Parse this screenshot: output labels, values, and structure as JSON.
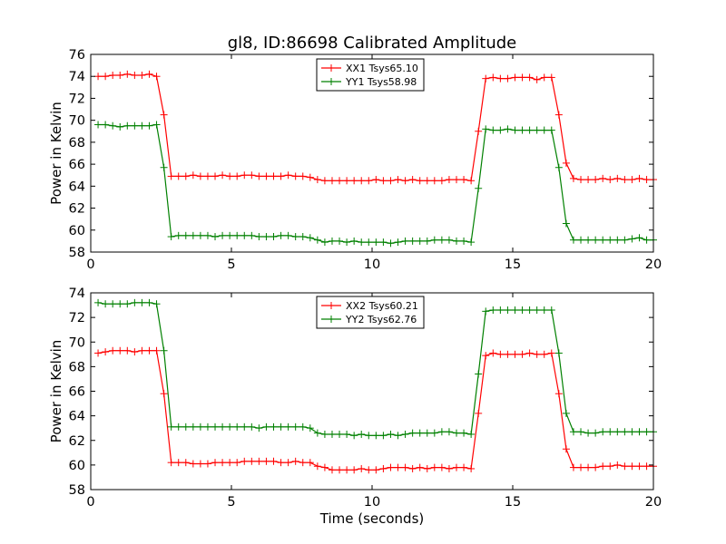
{
  "figure": {
    "title": "gl8, ID:86698 Calibrated Amplitude"
  },
  "chart_data": [
    {
      "type": "line",
      "title": "gl8, ID:86698 Calibrated Amplitude",
      "xlabel": "",
      "ylabel": "Power in Kelvin",
      "xlim": [
        0,
        20
      ],
      "ylim": [
        58,
        76
      ],
      "xticks": [
        "0",
        "5",
        "10",
        "15",
        "20"
      ],
      "yticks": [
        "58",
        "60",
        "62",
        "64",
        "66",
        "68",
        "70",
        "72",
        "74",
        "76"
      ],
      "grid": false,
      "legend_position": "top-center",
      "x": [
        0.26,
        0.52,
        0.78,
        1.04,
        1.3,
        1.56,
        1.82,
        2.08,
        2.34,
        2.6,
        2.86,
        3.12,
        3.38,
        3.64,
        3.9,
        4.16,
        4.42,
        4.68,
        4.94,
        5.2,
        5.46,
        5.72,
        5.98,
        6.24,
        6.5,
        6.76,
        7.02,
        7.28,
        7.54,
        7.8,
        8.06,
        8.32,
        8.58,
        8.84,
        9.1,
        9.36,
        9.62,
        9.88,
        10.14,
        10.4,
        10.66,
        10.92,
        11.18,
        11.44,
        11.7,
        11.96,
        12.22,
        12.48,
        12.74,
        13.0,
        13.26,
        13.52,
        13.78,
        14.04,
        14.3,
        14.56,
        14.82,
        15.08,
        15.34,
        15.6,
        15.86,
        16.12,
        16.38,
        16.64,
        16.9,
        17.16,
        17.42,
        17.68,
        17.94,
        18.2,
        18.46,
        18.72,
        18.98,
        19.24,
        19.5,
        19.76,
        20.0
      ],
      "series": [
        {
          "name": "XX1 Tsys65.10",
          "color": "#ff0000",
          "values": [
            74.0,
            74.0,
            74.1,
            74.1,
            74.2,
            74.1,
            74.1,
            74.2,
            74.0,
            70.5,
            64.9,
            64.9,
            64.9,
            65.0,
            64.9,
            64.9,
            64.9,
            65.0,
            64.9,
            64.9,
            65.0,
            65.0,
            64.9,
            64.9,
            64.9,
            64.9,
            65.0,
            64.9,
            64.9,
            64.8,
            64.6,
            64.5,
            64.5,
            64.5,
            64.5,
            64.5,
            64.5,
            64.5,
            64.6,
            64.5,
            64.5,
            64.6,
            64.5,
            64.6,
            64.5,
            64.5,
            64.5,
            64.5,
            64.6,
            64.6,
            64.6,
            64.5,
            69.0,
            73.8,
            73.9,
            73.8,
            73.8,
            73.9,
            73.9,
            73.9,
            73.7,
            73.9,
            73.9,
            70.5,
            66.1,
            64.7,
            64.6,
            64.6,
            64.6,
            64.7,
            64.6,
            64.7,
            64.6,
            64.6,
            64.7,
            64.6,
            64.6
          ]
        },
        {
          "name": "YY1 Tsys58.98",
          "color": "#008000",
          "values": [
            69.6,
            69.6,
            69.5,
            69.4,
            69.5,
            69.5,
            69.5,
            69.5,
            69.6,
            65.7,
            59.4,
            59.5,
            59.5,
            59.5,
            59.5,
            59.5,
            59.4,
            59.5,
            59.5,
            59.5,
            59.5,
            59.5,
            59.4,
            59.4,
            59.4,
            59.5,
            59.5,
            59.4,
            59.4,
            59.3,
            59.1,
            58.9,
            59.0,
            59.0,
            58.9,
            59.0,
            58.9,
            58.9,
            58.9,
            58.9,
            58.8,
            58.9,
            59.0,
            59.0,
            59.0,
            59.0,
            59.1,
            59.1,
            59.1,
            59.0,
            59.0,
            58.9,
            63.8,
            69.2,
            69.1,
            69.1,
            69.2,
            69.1,
            69.1,
            69.1,
            69.1,
            69.1,
            69.1,
            65.7,
            60.6,
            59.1,
            59.1,
            59.1,
            59.1,
            59.1,
            59.1,
            59.1,
            59.1,
            59.2,
            59.3,
            59.1,
            59.1
          ]
        }
      ]
    },
    {
      "type": "line",
      "title": "",
      "xlabel": "Time (seconds)",
      "ylabel": "Power in Kelvin",
      "xlim": [
        0,
        20
      ],
      "ylim": [
        58,
        74
      ],
      "xticks": [
        "0",
        "5",
        "10",
        "15",
        "20"
      ],
      "yticks": [
        "58",
        "60",
        "62",
        "64",
        "66",
        "68",
        "70",
        "72",
        "74"
      ],
      "grid": false,
      "legend_position": "top-center",
      "x": [
        0.26,
        0.52,
        0.78,
        1.04,
        1.3,
        1.56,
        1.82,
        2.08,
        2.34,
        2.6,
        2.86,
        3.12,
        3.38,
        3.64,
        3.9,
        4.16,
        4.42,
        4.68,
        4.94,
        5.2,
        5.46,
        5.72,
        5.98,
        6.24,
        6.5,
        6.76,
        7.02,
        7.28,
        7.54,
        7.8,
        8.06,
        8.32,
        8.58,
        8.84,
        9.1,
        9.36,
        9.62,
        9.88,
        10.14,
        10.4,
        10.66,
        10.92,
        11.18,
        11.44,
        11.7,
        11.96,
        12.22,
        12.48,
        12.74,
        13.0,
        13.26,
        13.52,
        13.78,
        14.04,
        14.3,
        14.56,
        14.82,
        15.08,
        15.34,
        15.6,
        15.86,
        16.12,
        16.38,
        16.64,
        16.9,
        17.16,
        17.42,
        17.68,
        17.94,
        18.2,
        18.46,
        18.72,
        18.98,
        19.24,
        19.5,
        19.76,
        20.0
      ],
      "series": [
        {
          "name": "XX2 Tsys60.21",
          "color": "#ff0000",
          "values": [
            69.1,
            69.2,
            69.3,
            69.3,
            69.3,
            69.2,
            69.3,
            69.3,
            69.3,
            65.8,
            60.2,
            60.2,
            60.2,
            60.1,
            60.1,
            60.1,
            60.2,
            60.2,
            60.2,
            60.2,
            60.3,
            60.3,
            60.3,
            60.3,
            60.3,
            60.2,
            60.2,
            60.3,
            60.2,
            60.2,
            59.9,
            59.8,
            59.6,
            59.6,
            59.6,
            59.6,
            59.7,
            59.6,
            59.6,
            59.7,
            59.8,
            59.8,
            59.8,
            59.7,
            59.8,
            59.7,
            59.8,
            59.8,
            59.7,
            59.8,
            59.8,
            59.7,
            64.2,
            68.9,
            69.1,
            69.0,
            69.0,
            69.0,
            69.0,
            69.1,
            69.0,
            69.0,
            69.1,
            65.8,
            61.3,
            59.8,
            59.8,
            59.8,
            59.8,
            59.9,
            59.9,
            60.0,
            59.9,
            59.9,
            59.9,
            59.9,
            59.9
          ]
        },
        {
          "name": "YY2 Tsys62.76",
          "color": "#008000",
          "values": [
            73.2,
            73.1,
            73.1,
            73.1,
            73.1,
            73.2,
            73.2,
            73.2,
            73.1,
            69.3,
            63.1,
            63.1,
            63.1,
            63.1,
            63.1,
            63.1,
            63.1,
            63.1,
            63.1,
            63.1,
            63.1,
            63.1,
            63.0,
            63.1,
            63.1,
            63.1,
            63.1,
            63.1,
            63.1,
            63.0,
            62.6,
            62.5,
            62.5,
            62.5,
            62.5,
            62.4,
            62.5,
            62.4,
            62.4,
            62.4,
            62.5,
            62.4,
            62.5,
            62.6,
            62.6,
            62.6,
            62.6,
            62.7,
            62.7,
            62.6,
            62.6,
            62.5,
            67.4,
            72.5,
            72.6,
            72.6,
            72.6,
            72.6,
            72.6,
            72.6,
            72.6,
            72.6,
            72.6,
            69.1,
            64.2,
            62.7,
            62.7,
            62.6,
            62.6,
            62.7,
            62.7,
            62.7,
            62.7,
            62.7,
            62.7,
            62.7,
            62.7
          ]
        }
      ]
    }
  ]
}
